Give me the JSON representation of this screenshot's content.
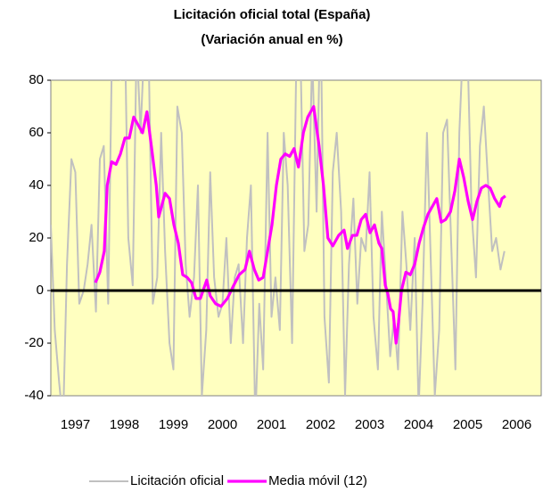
{
  "chart_data": {
    "type": "line",
    "title": "Licitación oficial total  (España)",
    "subtitle": "(Variación anual en %)",
    "xlim": [
      1997,
      2007
    ],
    "xticks": [
      {
        "value": 1997.5,
        "label": "1997"
      },
      {
        "value": 1998.5,
        "label": "1998"
      },
      {
        "value": 1999.5,
        "label": "1999"
      },
      {
        "value": 2000.5,
        "label": "2000"
      },
      {
        "value": 2001.5,
        "label": "2001"
      },
      {
        "value": 2002.5,
        "label": "2002"
      },
      {
        "value": 2003.5,
        "label": "2003"
      },
      {
        "value": 2004.5,
        "label": "2004"
      },
      {
        "value": 2005.5,
        "label": "2005"
      },
      {
        "value": 2006.5,
        "label": "2006"
      }
    ],
    "ylim": [
      -40,
      80
    ],
    "yticks": [
      -40,
      -20,
      0,
      20,
      40,
      60,
      80
    ],
    "grid": false,
    "zero_line": true,
    "background": "#ffffc0",
    "legend": "bottom",
    "series": [
      {
        "name": "Licitación oficial",
        "color": "#c0c0c0",
        "x": [
          1997.0,
          1997.08,
          1997.17,
          1997.25,
          1997.33,
          1997.42,
          1997.5,
          1997.58,
          1997.67,
          1997.75,
          1997.83,
          1997.92,
          1998.0,
          1998.08,
          1998.17,
          1998.25,
          1998.33,
          1998.42,
          1998.5,
          1998.58,
          1998.67,
          1998.75,
          1998.83,
          1998.92,
          1999.0,
          1999.08,
          1999.17,
          1999.25,
          1999.33,
          1999.42,
          1999.5,
          1999.58,
          1999.67,
          1999.75,
          1999.83,
          1999.92,
          2000.0,
          2000.08,
          2000.17,
          2000.25,
          2000.33,
          2000.42,
          2000.5,
          2000.58,
          2000.67,
          2000.75,
          2000.83,
          2000.92,
          2001.0,
          2001.08,
          2001.17,
          2001.25,
          2001.33,
          2001.42,
          2001.5,
          2001.58,
          2001.67,
          2001.75,
          2001.83,
          2001.92,
          2002.0,
          2002.08,
          2002.17,
          2002.25,
          2002.33,
          2002.42,
          2002.5,
          2002.58,
          2002.67,
          2002.75,
          2002.83,
          2002.92,
          2003.0,
          2003.08,
          2003.17,
          2003.25,
          2003.33,
          2003.42,
          2003.5,
          2003.58,
          2003.67,
          2003.75,
          2003.83,
          2003.92,
          2004.0,
          2004.08,
          2004.17,
          2004.25,
          2004.33,
          2004.42,
          2004.5,
          2004.58,
          2004.67,
          2004.75,
          2004.83,
          2004.92,
          2005.0,
          2005.08,
          2005.17,
          2005.25,
          2005.33,
          2005.42,
          2005.5,
          2005.58,
          2005.67,
          2005.75,
          2005.83,
          2005.92,
          2006.0,
          2006.08,
          2006.17,
          2006.25
        ],
        "values": [
          25,
          -15,
          -35,
          -50,
          10,
          50,
          45,
          -5,
          0,
          10,
          25,
          -8,
          50,
          55,
          -5,
          95,
          90,
          80,
          110,
          20,
          2,
          95,
          60,
          100,
          85,
          -5,
          5,
          60,
          15,
          -20,
          -30,
          70,
          60,
          10,
          -10,
          5,
          40,
          -40,
          -15,
          45,
          5,
          -10,
          -5,
          20,
          -20,
          5,
          10,
          -20,
          20,
          40,
          -50,
          -5,
          -30,
          60,
          -10,
          5,
          -15,
          60,
          40,
          -20,
          80,
          100,
          15,
          25,
          90,
          30,
          110,
          -10,
          -35,
          45,
          60,
          30,
          -40,
          10,
          35,
          -5,
          20,
          15,
          45,
          -10,
          -30,
          30,
          5,
          -25,
          -10,
          -30,
          30,
          10,
          -15,
          20,
          -45,
          -5,
          60,
          10,
          -40,
          -15,
          60,
          65,
          15,
          -30,
          60,
          100,
          90,
          30,
          5,
          55,
          70,
          40,
          15,
          20,
          8,
          15
        ]
      },
      {
        "name": "Media móvil (12)",
        "color": "#ff00ff",
        "x": [
          1997.91,
          1998.0,
          1998.09,
          1998.15,
          1998.24,
          1998.33,
          1998.42,
          1998.51,
          1998.6,
          1998.69,
          1998.78,
          1998.87,
          1998.96,
          1999.05,
          1999.15,
          1999.2,
          1999.33,
          1999.42,
          1999.51,
          1999.6,
          1999.69,
          1999.78,
          1999.87,
          1999.96,
          2000.05,
          2000.18,
          2000.25,
          2000.36,
          2000.47,
          2000.6,
          2000.73,
          2000.84,
          2000.96,
          2001.05,
          2001.15,
          2001.24,
          2001.33,
          2001.42,
          2001.51,
          2001.6,
          2001.69,
          2001.78,
          2001.87,
          2001.96,
          2002.05,
          2002.15,
          2002.24,
          2002.36,
          2002.47,
          2002.56,
          2002.65,
          2002.75,
          2002.87,
          2002.98,
          2003.05,
          2003.15,
          2003.24,
          2003.33,
          2003.42,
          2003.51,
          2003.6,
          2003.69,
          2003.75,
          2003.82,
          2003.87,
          2003.93,
          2003.98,
          2004.04,
          2004.09,
          2004.15,
          2004.24,
          2004.33,
          2004.42,
          2004.51,
          2004.6,
          2004.69,
          2004.78,
          2004.87,
          2004.96,
          2005.05,
          2005.15,
          2005.24,
          2005.33,
          2005.42,
          2005.51,
          2005.6,
          2005.69,
          2005.78,
          2005.87,
          2005.96,
          2006.05,
          2006.15,
          2006.2,
          2006.27
        ],
        "values": [
          3,
          7,
          15,
          40,
          49,
          48,
          52,
          58,
          58,
          66,
          63,
          60,
          68,
          55,
          40,
          28,
          37,
          35,
          25,
          18,
          6,
          5,
          3,
          -3,
          -3,
          4,
          -2,
          -5,
          -6,
          -3,
          2,
          6,
          8,
          15,
          8,
          4,
          5,
          15,
          25,
          40,
          50,
          52,
          51,
          54,
          47,
          60,
          66,
          70,
          55,
          40,
          20,
          17,
          21,
          23,
          16,
          21,
          21,
          27,
          29,
          22,
          25,
          18,
          16,
          2,
          -1,
          -7,
          -8,
          -20,
          -12,
          0,
          7,
          6,
          10,
          18,
          24,
          29,
          32,
          35,
          26,
          27,
          30,
          38,
          50,
          43,
          34,
          27,
          34,
          39,
          40,
          39,
          35,
          32,
          35,
          36
        ]
      }
    ]
  }
}
